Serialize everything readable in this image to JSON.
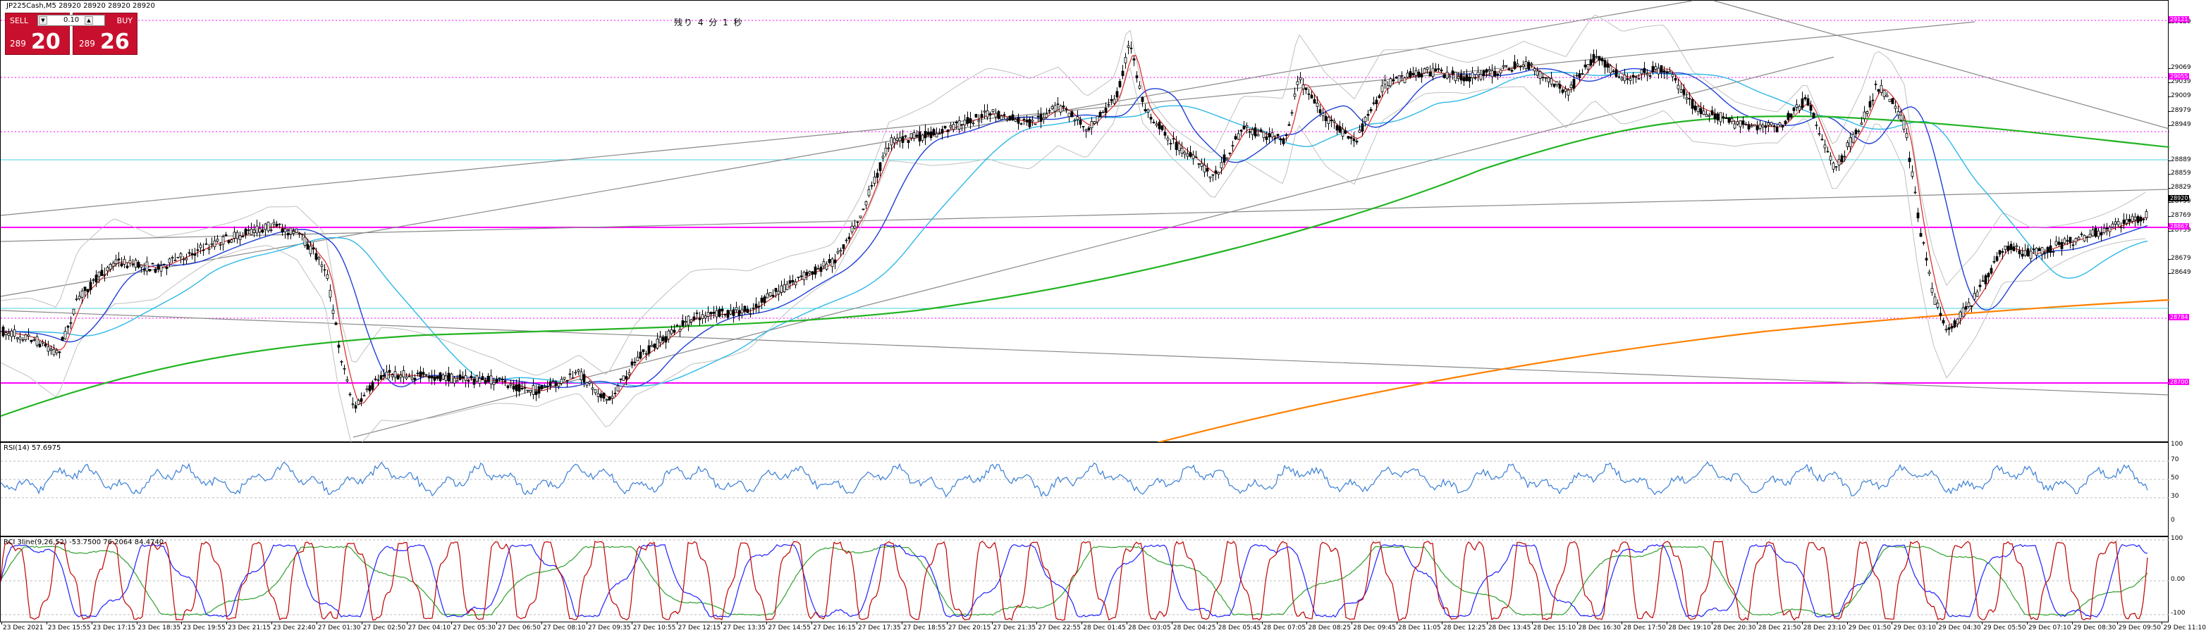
{
  "symbol_line": "JP225Cash,M5  28920 28920 28920 28920",
  "countdown": "残り 4 分 1 秒",
  "trade_panel": {
    "sell_label": "SELL",
    "buy_label": "BUY",
    "lot": "0.10",
    "sell_prefix": "289",
    "sell_big": "20",
    "buy_prefix": "289",
    "buy_big": "26",
    "dropdown_icon": "chevron-down-icon",
    "up_icon": "chevron-up-icon"
  },
  "price_axis": {
    "ticks": [
      "29129",
      "29069",
      "29039",
      "29009",
      "28979",
      "28949",
      "28889",
      "28859",
      "28829",
      "28799",
      "28769",
      "28739",
      "28679",
      "28649"
    ],
    "levels": [
      "29121",
      "29055",
      "28867",
      "28784",
      "28700"
    ],
    "current": "28920"
  },
  "rsi": {
    "label": "RSI(14) 57.6975",
    "ticks": [
      "100",
      "70",
      "50",
      "30",
      "0"
    ]
  },
  "rci": {
    "label": "RCI 3line(9,26,52) -53.7500 76.2064 84.4740",
    "ticks": [
      "100",
      "0.00",
      "-100"
    ]
  },
  "time_axis": [
    "23 Dec 2021",
    "23 Dec 15:55",
    "23 Dec 17:15",
    "23 Dec 18:35",
    "23 Dec 19:55",
    "23 Dec 21:15",
    "23 Dec 22:40",
    "27 Dec 01:30",
    "27 Dec 02:50",
    "27 Dec 04:10",
    "27 Dec 05:30",
    "27 Dec 06:50",
    "27 Dec 08:10",
    "27 Dec 09:35",
    "27 Dec 10:55",
    "27 Dec 12:15",
    "27 Dec 13:35",
    "27 Dec 14:55",
    "27 Dec 16:15",
    "27 Dec 17:35",
    "27 Dec 18:55",
    "27 Dec 20:15",
    "27 Dec 21:35",
    "27 Dec 22:55",
    "28 Dec 01:45",
    "28 Dec 03:05",
    "28 Dec 04:25",
    "28 Dec 05:45",
    "28 Dec 07:05",
    "28 Dec 08:25",
    "28 Dec 09:45",
    "28 Dec 11:05",
    "28 Dec 12:25",
    "28 Dec 13:45",
    "28 Dec 15:10",
    "28 Dec 16:30",
    "28 Dec 17:50",
    "28 Dec 19:10",
    "28 Dec 20:30",
    "28 Dec 21:50",
    "28 Dec 23:10",
    "29 Dec 01:50",
    "29 Dec 03:10",
    "29 Dec 04:30",
    "29 Dec 05:50",
    "29 Dec 07:10",
    "29 Dec 08:30",
    "29 Dec 09:50",
    "29 Dec 11:10"
  ],
  "colors": {
    "candle_up": "#000000",
    "ma_fast": "#d62728",
    "ma_mid": "#1f3fd6",
    "ma_slow": "#2eb8e6",
    "ma_200": "#22b422",
    "ma_long": "#ff8000",
    "level_line": "#ff00ff",
    "bollinger": "#c0c0c0",
    "rsi_line": "#3a7fd5",
    "rci_short": "#c00000",
    "rci_mid": "#2020ff",
    "rci_long": "#30a030"
  }
}
